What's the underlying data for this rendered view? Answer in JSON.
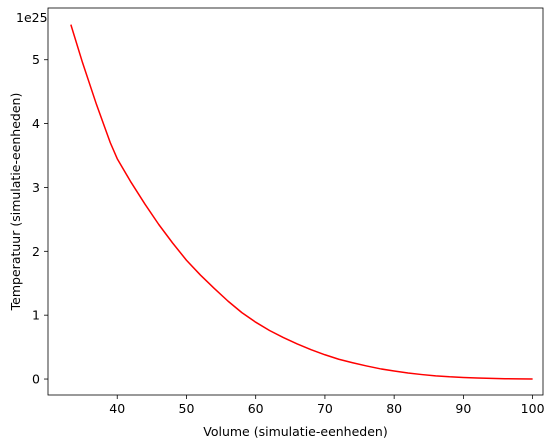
{
  "chart_data": {
    "type": "line",
    "xlabel": "Volume (simulatie-eenheden)",
    "ylabel": "Temperatuur (simulatie-eenheden)",
    "y_offset_label": "1e25",
    "y_scale": 1e+25,
    "xlim": [
      30.0,
      101.5
    ],
    "ylim": [
      -0.25,
      5.81
    ],
    "x_ticks": [
      40,
      50,
      60,
      70,
      80,
      90,
      100
    ],
    "y_ticks": [
      0,
      1,
      2,
      3,
      4,
      5
    ],
    "grid": false,
    "legend": "none",
    "color": "#ff0000",
    "series": [
      {
        "x": [
          33.3,
          35,
          37,
          39,
          40,
          42,
          44,
          46,
          48,
          50,
          52,
          54,
          56,
          58,
          60,
          62,
          64,
          66,
          68,
          70,
          72,
          74,
          76,
          78,
          80,
          82,
          84,
          86,
          88,
          90,
          92,
          94,
          96,
          98,
          100
        ],
        "y": [
          5.55,
          4.95,
          4.3,
          3.7,
          3.45,
          3.08,
          2.74,
          2.42,
          2.13,
          1.86,
          1.63,
          1.42,
          1.22,
          1.04,
          0.89,
          0.76,
          0.65,
          0.55,
          0.46,
          0.38,
          0.31,
          0.255,
          0.205,
          0.16,
          0.125,
          0.095,
          0.07,
          0.05,
          0.035,
          0.025,
          0.016,
          0.01,
          0.005,
          0.002,
          0.0
        ]
      }
    ]
  }
}
